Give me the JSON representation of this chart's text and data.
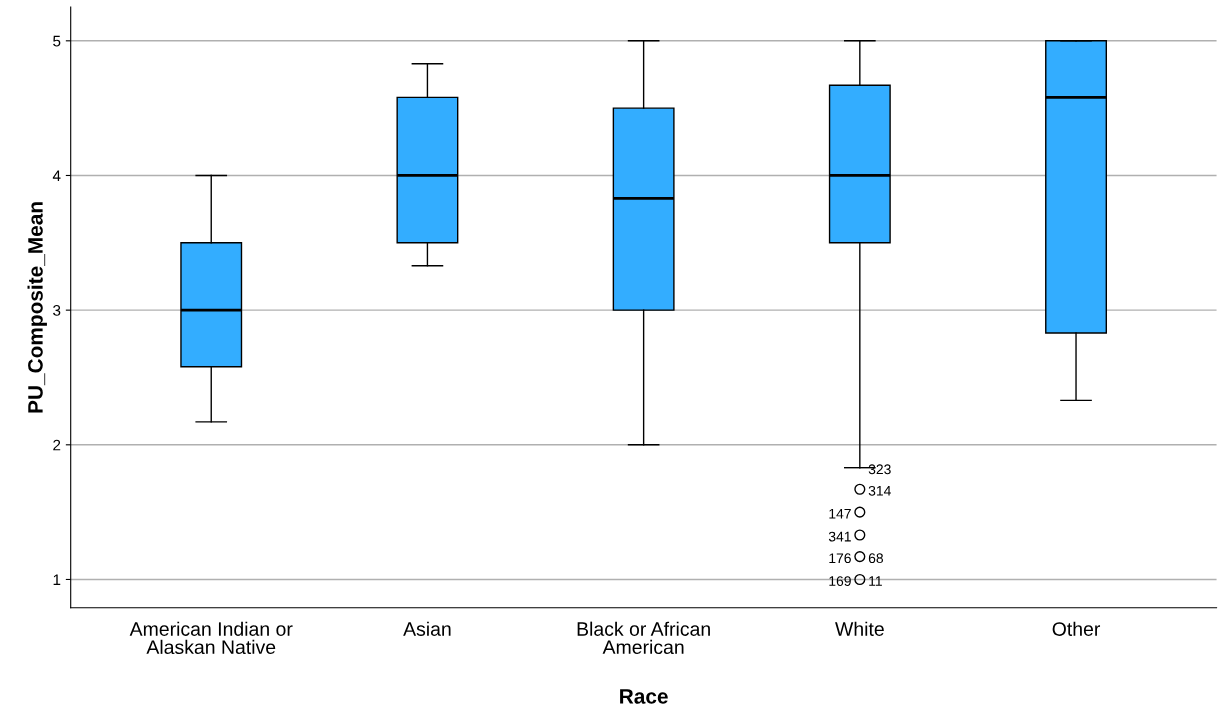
{
  "chart_data": {
    "type": "box",
    "xlabel": "Race",
    "ylabel": "PU_Composite_Mean",
    "categories": [
      "American Indian or\nAlaskan Native",
      "Asian",
      "Black or African\nAmerican",
      "White",
      "Other"
    ],
    "series": [
      {
        "color": "#33adff",
        "boxes": [
          {
            "low": 2.17,
            "q1": 2.58,
            "median": 3.0,
            "q3": 3.5,
            "high": 4.0
          },
          {
            "low": 3.33,
            "q1": 3.5,
            "median": 4.0,
            "q3": 4.58,
            "high": 4.83
          },
          {
            "low": 2.0,
            "q1": 3.0,
            "median": 3.83,
            "q3": 4.5,
            "high": 5.0
          },
          {
            "low": 1.83,
            "q1": 3.5,
            "median": 4.0,
            "q3": 4.67,
            "high": 5.0
          },
          {
            "low": 2.33,
            "q1": 2.83,
            "median": 4.58,
            "q3": 5.0,
            "high": 5.0
          }
        ]
      },
      {
        "type": "scatter",
        "color": "#000000",
        "marker": "circle",
        "x": [
          "White",
          "White",
          "White",
          "White",
          "White"
        ],
        "values": [
          1.67,
          1.5,
          1.33,
          1.17,
          1.0
        ]
      }
    ],
    "ylim": [
      0.79,
      5.25
    ],
    "yticks": [
      1,
      2,
      3,
      4,
      5
    ],
    "grid": "y",
    "annotations": [
      {
        "text": "323",
        "x": "White",
        "y": 1.83
      },
      {
        "text": "147",
        "x": "White",
        "y": 1.5
      },
      {
        "text": "314",
        "x": "White",
        "y": 1.67
      },
      {
        "text": "341",
        "x": "White",
        "y": 1.33
      },
      {
        "text": "68",
        "x": "White",
        "y": 1.17
      },
      {
        "text": "176",
        "x": "White",
        "y": 1.17
      },
      {
        "text": "11",
        "x": "White",
        "y": 1.0
      },
      {
        "text": "169",
        "x": "White",
        "y": 1.0
      }
    ]
  }
}
